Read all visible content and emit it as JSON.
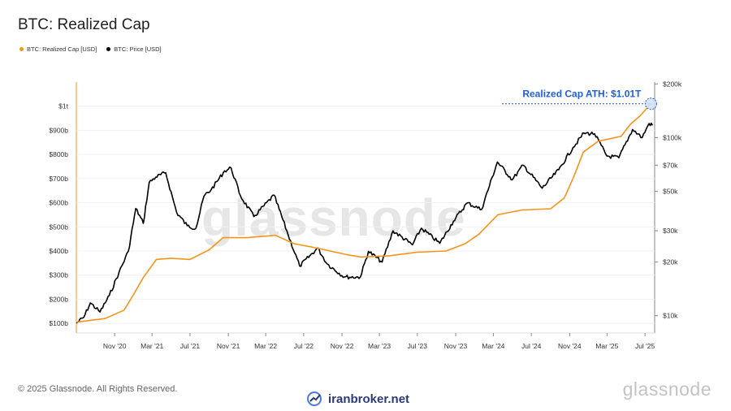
{
  "header": {
    "title": "BTC: Realized Cap"
  },
  "legend": [
    {
      "label": "BTC: Realized Cap [USD]",
      "color": "#f7931a"
    },
    {
      "label": "BTC: Price [USD]",
      "color": "#000000"
    }
  ],
  "footer": {
    "copyright": "© 2025 Glassnode. All Rights Reserved.",
    "brand": "glassnode",
    "watermark": "glassnode",
    "partner": "iranbroker.net"
  },
  "chart_data": {
    "type": "line",
    "annotation": "Realized Cap ATH: $1.01T",
    "x_ticks": [
      "Nov '20",
      "Mar '21",
      "Jul '21",
      "Nov '21",
      "Mar '22",
      "Jul '22",
      "Nov '22",
      "Mar '23",
      "Jul '23",
      "Nov '23",
      "Mar '24",
      "Jul '24",
      "Nov '24",
      "Mar '25",
      "Jul '25"
    ],
    "left_axis": {
      "ticks": [
        "$100b",
        "$200b",
        "$300b",
        "$400b",
        "$500b",
        "$600b",
        "$700b",
        "$800b",
        "$900b",
        "$1t"
      ],
      "tick_values": [
        100,
        200,
        300,
        400,
        500,
        600,
        700,
        800,
        900,
        1000
      ],
      "unit": "USD billions",
      "range": [
        60,
        1100
      ]
    },
    "right_axis": {
      "ticks": [
        "$10k",
        "$20k",
        "$30k",
        "$50k",
        "$70k",
        "$100k",
        "$200k"
      ],
      "tick_values": [
        10000,
        20000,
        30000,
        50000,
        70000,
        100000,
        200000
      ],
      "scale": "log"
    },
    "x_range": [
      "2020-07-01",
      "2025-08-01"
    ],
    "series": [
      {
        "name": "BTC: Realized Cap [USD]",
        "axis": "left",
        "color": "#f7931a",
        "x": [
          "2020-07-01",
          "2020-10-01",
          "2020-12-01",
          "2021-01-01",
          "2021-02-01",
          "2021-03-15",
          "2021-05-01",
          "2021-07-01",
          "2021-09-01",
          "2021-10-15",
          "2022-01-01",
          "2022-04-01",
          "2022-06-01",
          "2022-08-01",
          "2022-11-15",
          "2023-01-01",
          "2023-04-01",
          "2023-07-01",
          "2023-10-01",
          "2023-12-01",
          "2024-01-15",
          "2024-03-15",
          "2024-06-01",
          "2024-09-01",
          "2024-10-15",
          "2024-11-15",
          "2024-12-15",
          "2025-02-01",
          "2025-04-15",
          "2025-05-15",
          "2025-06-15",
          "2025-07-20"
        ],
        "y": [
          105,
          120,
          155,
          220,
          290,
          365,
          370,
          365,
          405,
          455,
          455,
          465,
          430,
          415,
          385,
          375,
          380,
          395,
          400,
          430,
          470,
          550,
          570,
          575,
          620,
          710,
          810,
          855,
          875,
          925,
          960,
          1010
        ]
      },
      {
        "name": "BTC: Price [USD]",
        "axis": "right",
        "color": "#000000",
        "x": [
          "2020-07-01",
          "2020-07-25",
          "2020-08-15",
          "2020-09-15",
          "2020-10-15",
          "2020-11-15",
          "2020-12-15",
          "2021-01-08",
          "2021-02-01",
          "2021-02-20",
          "2021-03-13",
          "2021-04-14",
          "2021-05-19",
          "2021-06-22",
          "2021-07-20",
          "2021-08-15",
          "2021-09-07",
          "2021-10-20",
          "2021-11-10",
          "2021-12-10",
          "2022-01-22",
          "2022-03-28",
          "2022-05-12",
          "2022-06-18",
          "2022-08-15",
          "2022-09-15",
          "2022-11-09",
          "2022-12-30",
          "2023-01-25",
          "2023-03-10",
          "2023-04-14",
          "2023-06-15",
          "2023-07-14",
          "2023-09-11",
          "2023-10-25",
          "2023-12-08",
          "2024-01-23",
          "2024-03-14",
          "2024-05-01",
          "2024-06-05",
          "2024-08-05",
          "2024-09-27",
          "2024-11-12",
          "2024-12-17",
          "2025-01-20",
          "2025-02-28",
          "2025-04-08",
          "2025-05-22",
          "2025-06-22",
          "2025-07-14",
          "2025-07-25"
        ],
        "y": [
          9100,
          9800,
          11800,
          10500,
          13000,
          17500,
          23000,
          40000,
          33000,
          56000,
          60000,
          63500,
          38000,
          32000,
          31000,
          47000,
          51000,
          65000,
          67500,
          47000,
          36000,
          47500,
          28500,
          19000,
          24000,
          19500,
          16500,
          16500,
          23000,
          20000,
          30000,
          25000,
          31000,
          25500,
          34000,
          43000,
          39500,
          73000,
          58000,
          70000,
          52000,
          66000,
          88000,
          106000,
          105000,
          79000,
          77000,
          111000,
          100000,
          120000,
          117000
        ]
      }
    ]
  }
}
